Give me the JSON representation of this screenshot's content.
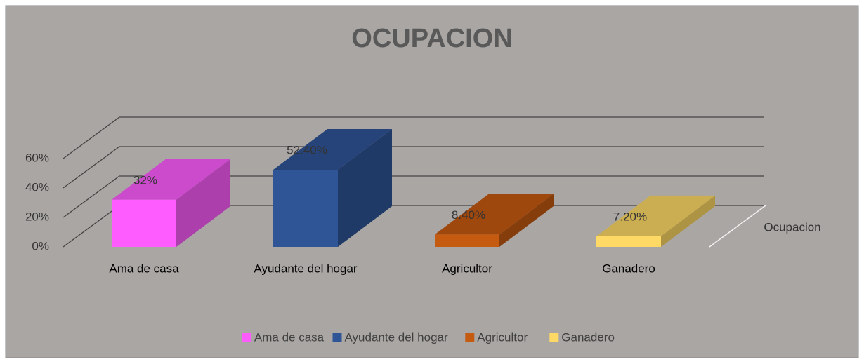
{
  "chart_data": {
    "type": "bar3d",
    "title": "OCUPACION",
    "categories": [
      "Ama de casa",
      "Ayudante del hogar",
      "Agricultor",
      "Ganadero"
    ],
    "colors": [
      "#ff5cff",
      "#2f5597",
      "#c55a11",
      "#ffd966"
    ],
    "series": [
      {
        "name": "Ocupacion",
        "values": [
          32,
          52.4,
          8.4,
          7.2
        ],
        "value_labels": [
          "32%",
          "52.40%",
          "8.40%",
          "7.20%"
        ]
      }
    ],
    "ylim": [
      0,
      60
    ],
    "yticks": [
      {
        "value": 0,
        "label": "0%"
      },
      {
        "value": 20,
        "label": "20%"
      },
      {
        "value": 40,
        "label": "40%"
      },
      {
        "value": 60,
        "label": "60%"
      }
    ],
    "grid": true,
    "legend": "bottom"
  }
}
